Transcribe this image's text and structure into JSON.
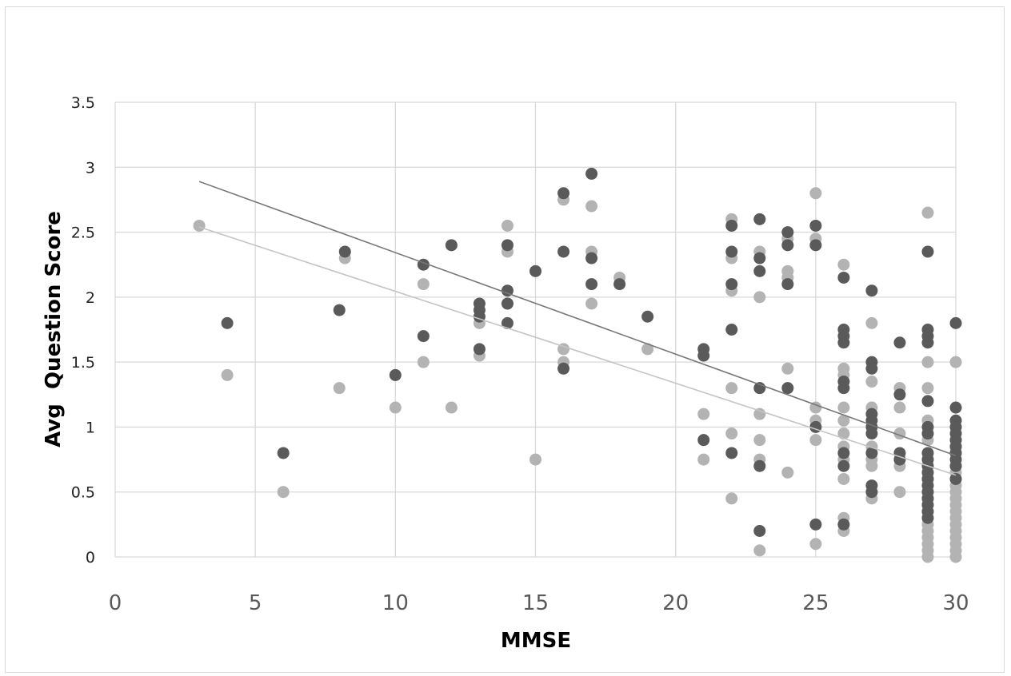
{
  "chart_data": {
    "type": "scatter",
    "title": "",
    "xlabel": "MMSE",
    "ylabel": "Avg  Question Score",
    "xlim": [
      0,
      30
    ],
    "ylim": [
      0,
      3.5
    ],
    "x_ticks": [
      "0",
      "5",
      "10",
      "15",
      "20",
      "25",
      "30"
    ],
    "y_ticks": [
      "0",
      "0.5",
      "1",
      "1.5",
      "2",
      "2.5",
      "3",
      "3.5"
    ],
    "x_tick_values": [
      0,
      5,
      10,
      15,
      20,
      25,
      30
    ],
    "y_tick_values": [
      0,
      0.5,
      1,
      1.5,
      2,
      2.5,
      3,
      3.5
    ],
    "grid": true,
    "legend": "none",
    "series": [
      {
        "color": "#5a5a5a",
        "trendline": {
          "x": [
            3,
            30
          ],
          "y": [
            2.89,
            0.78
          ]
        },
        "points": [
          [
            4,
            1.8
          ],
          [
            6,
            0.8
          ],
          [
            8,
            1.9
          ],
          [
            8.2,
            2.35
          ],
          [
            10,
            1.4
          ],
          [
            11,
            2.25
          ],
          [
            11,
            1.7
          ],
          [
            12,
            2.4
          ],
          [
            13,
            1.95
          ],
          [
            13,
            1.9
          ],
          [
            13,
            1.85
          ],
          [
            13,
            1.6
          ],
          [
            14,
            2.4
          ],
          [
            14,
            2.05
          ],
          [
            14,
            1.95
          ],
          [
            14,
            1.8
          ],
          [
            15,
            2.2
          ],
          [
            16,
            2.8
          ],
          [
            16,
            2.35
          ],
          [
            16,
            1.45
          ],
          [
            17,
            2.95
          ],
          [
            17,
            2.3
          ],
          [
            17,
            2.1
          ],
          [
            18,
            2.1
          ],
          [
            19,
            1.85
          ],
          [
            21,
            1.6
          ],
          [
            21,
            1.55
          ],
          [
            21,
            0.9
          ],
          [
            22,
            2.55
          ],
          [
            22,
            2.35
          ],
          [
            22,
            2.1
          ],
          [
            22,
            1.75
          ],
          [
            22,
            0.8
          ],
          [
            23,
            2.6
          ],
          [
            23,
            2.3
          ],
          [
            23,
            2.2
          ],
          [
            23,
            1.3
          ],
          [
            23,
            0.7
          ],
          [
            23,
            0.2
          ],
          [
            24,
            2.5
          ],
          [
            24,
            2.4
          ],
          [
            24,
            2.1
          ],
          [
            24,
            1.3
          ],
          [
            25,
            2.55
          ],
          [
            25,
            2.4
          ],
          [
            25,
            1.0
          ],
          [
            25,
            0.25
          ],
          [
            26,
            2.15
          ],
          [
            26,
            1.75
          ],
          [
            26,
            1.7
          ],
          [
            26,
            1.65
          ],
          [
            26,
            1.35
          ],
          [
            26,
            1.3
          ],
          [
            26,
            0.8
          ],
          [
            26,
            0.7
          ],
          [
            26,
            0.25
          ],
          [
            27,
            2.05
          ],
          [
            27,
            1.5
          ],
          [
            27,
            1.45
          ],
          [
            27,
            1.1
          ],
          [
            27,
            1.05
          ],
          [
            27,
            1.0
          ],
          [
            27,
            0.95
          ],
          [
            27,
            0.8
          ],
          [
            27,
            0.55
          ],
          [
            27,
            0.5
          ],
          [
            28,
            1.65
          ],
          [
            28,
            1.25
          ],
          [
            28,
            0.8
          ],
          [
            28,
            0.75
          ],
          [
            29,
            2.35
          ],
          [
            29,
            1.75
          ],
          [
            29,
            1.7
          ],
          [
            29,
            1.65
          ],
          [
            29,
            1.2
          ],
          [
            29,
            1.0
          ],
          [
            29,
            0.95
          ],
          [
            29,
            0.8
          ],
          [
            29,
            0.75
          ],
          [
            29,
            0.7
          ],
          [
            29,
            0.65
          ],
          [
            29,
            0.6
          ],
          [
            29,
            0.55
          ],
          [
            29,
            0.5
          ],
          [
            29,
            0.45
          ],
          [
            29,
            0.4
          ],
          [
            29,
            0.35
          ],
          [
            29,
            0.3
          ],
          [
            30,
            1.8
          ],
          [
            30,
            1.15
          ],
          [
            30,
            1.05
          ],
          [
            30,
            1.0
          ],
          [
            30,
            0.95
          ],
          [
            30,
            0.9
          ],
          [
            30,
            0.85
          ],
          [
            30,
            0.8
          ],
          [
            30,
            0.75
          ],
          [
            30,
            0.7
          ],
          [
            30,
            0.6
          ]
        ]
      },
      {
        "color": "#b3b3b3",
        "trendline": {
          "x": [
            3,
            30
          ],
          "y": [
            2.54,
            0.63
          ]
        },
        "points": [
          [
            3,
            2.55
          ],
          [
            4,
            1.4
          ],
          [
            6,
            0.5
          ],
          [
            8,
            1.3
          ],
          [
            8.2,
            2.3
          ],
          [
            10,
            1.15
          ],
          [
            11,
            2.1
          ],
          [
            11,
            1.5
          ],
          [
            12,
            1.15
          ],
          [
            13,
            1.8
          ],
          [
            13,
            1.55
          ],
          [
            14,
            2.55
          ],
          [
            14,
            2.35
          ],
          [
            14,
            1.95
          ],
          [
            15,
            0.75
          ],
          [
            16,
            2.75
          ],
          [
            16,
            1.6
          ],
          [
            16,
            1.5
          ],
          [
            17,
            2.7
          ],
          [
            17,
            2.35
          ],
          [
            17,
            1.95
          ],
          [
            18,
            2.15
          ],
          [
            19,
            1.6
          ],
          [
            21,
            1.1
          ],
          [
            21,
            0.75
          ],
          [
            22,
            2.6
          ],
          [
            22,
            2.3
          ],
          [
            22,
            2.05
          ],
          [
            22,
            1.3
          ],
          [
            22,
            0.95
          ],
          [
            22,
            0.45
          ],
          [
            23,
            2.35
          ],
          [
            23,
            2.0
          ],
          [
            23,
            1.1
          ],
          [
            23,
            0.9
          ],
          [
            23,
            0.75
          ],
          [
            23,
            0.05
          ],
          [
            24,
            2.45
          ],
          [
            24,
            2.2
          ],
          [
            24,
            2.15
          ],
          [
            24,
            1.45
          ],
          [
            24,
            0.65
          ],
          [
            25,
            2.8
          ],
          [
            25,
            2.45
          ],
          [
            25,
            1.15
          ],
          [
            25,
            1.05
          ],
          [
            25,
            0.9
          ],
          [
            25,
            0.1
          ],
          [
            26,
            2.25
          ],
          [
            26,
            1.45
          ],
          [
            26,
            1.4
          ],
          [
            26,
            1.35
          ],
          [
            26,
            1.15
          ],
          [
            26,
            1.05
          ],
          [
            26,
            0.95
          ],
          [
            26,
            0.85
          ],
          [
            26,
            0.75
          ],
          [
            26,
            0.6
          ],
          [
            26,
            0.3
          ],
          [
            26,
            0.2
          ],
          [
            27,
            1.8
          ],
          [
            27,
            1.35
          ],
          [
            27,
            1.15
          ],
          [
            27,
            0.85
          ],
          [
            27,
            0.75
          ],
          [
            27,
            0.7
          ],
          [
            27,
            0.5
          ],
          [
            27,
            0.45
          ],
          [
            28,
            1.3
          ],
          [
            28,
            1.15
          ],
          [
            28,
            0.95
          ],
          [
            28,
            0.75
          ],
          [
            28,
            0.7
          ],
          [
            28,
            0.5
          ],
          [
            29,
            2.65
          ],
          [
            29,
            1.5
          ],
          [
            29,
            1.3
          ],
          [
            29,
            1.05
          ],
          [
            29,
            0.95
          ],
          [
            29,
            0.9
          ],
          [
            29,
            0.75
          ],
          [
            29,
            0.6
          ],
          [
            29,
            0.55
          ],
          [
            29,
            0.5
          ],
          [
            29,
            0.45
          ],
          [
            29,
            0.4
          ],
          [
            29,
            0.35
          ],
          [
            29,
            0.25
          ],
          [
            29,
            0.2
          ],
          [
            29,
            0.15
          ],
          [
            29,
            0.1
          ],
          [
            29,
            0.05
          ],
          [
            29,
            0.0
          ],
          [
            30,
            1.5
          ],
          [
            30,
            1.0
          ],
          [
            30,
            0.9
          ],
          [
            30,
            0.85
          ],
          [
            30,
            0.8
          ],
          [
            30,
            0.7
          ],
          [
            30,
            0.65
          ],
          [
            30,
            0.6
          ],
          [
            30,
            0.55
          ],
          [
            30,
            0.5
          ],
          [
            30,
            0.45
          ],
          [
            30,
            0.4
          ],
          [
            30,
            0.35
          ],
          [
            30,
            0.3
          ],
          [
            30,
            0.25
          ],
          [
            30,
            0.2
          ],
          [
            30,
            0.15
          ],
          [
            30,
            0.1
          ],
          [
            30,
            0.05
          ],
          [
            30,
            0.0
          ]
        ]
      }
    ]
  }
}
